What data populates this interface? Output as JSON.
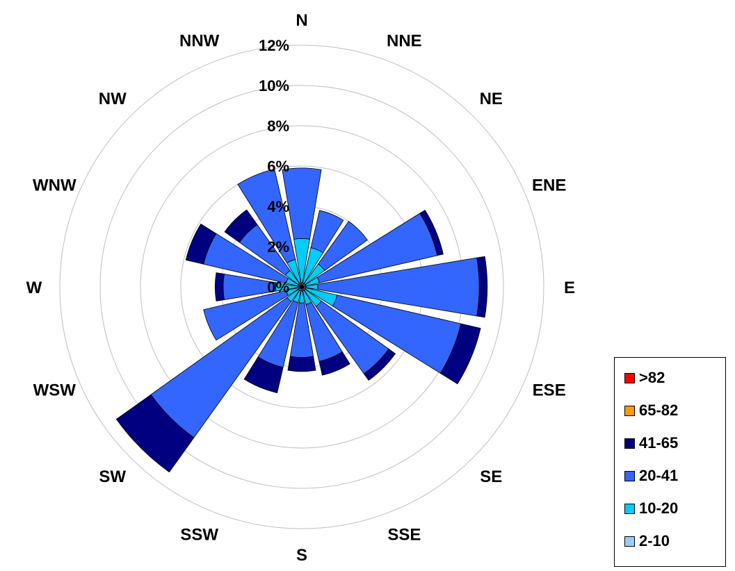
{
  "chart_data": {
    "type": "wind-rose",
    "title": "",
    "directions": [
      "N",
      "NNE",
      "NE",
      "ENE",
      "E",
      "ESE",
      "SE",
      "SSE",
      "S",
      "SSW",
      "SW",
      "WSW",
      "W",
      "WNW",
      "NW",
      "NNW"
    ],
    "radial_ticks": [
      "0%",
      "2%",
      "4%",
      "6%",
      "8%",
      "10%",
      "12%"
    ],
    "radial_max": 12,
    "grid": true,
    "legend_position": "bottom-right",
    "legend_order": [
      "s6",
      "s5",
      "s4",
      "s3",
      "s2",
      "s1"
    ],
    "series": [
      {
        "id": "s1",
        "name": "2-10",
        "color": "#99CCFF",
        "values": [
          0.2,
          0.2,
          0.2,
          0.2,
          0.2,
          0.2,
          0.2,
          0.2,
          0.2,
          0.2,
          0.2,
          0.2,
          0.2,
          0.2,
          0.2,
          0.2
        ]
      },
      {
        "id": "s2",
        "name": "10-20",
        "color": "#00CCFF",
        "values": [
          2.2,
          1.8,
          1.2,
          0.7,
          0.6,
          1.6,
          1.0,
          0.7,
          0.6,
          0.6,
          0.7,
          0.6,
          1.1,
          0.6,
          0.8,
          1.2
        ]
      },
      {
        "id": "s3",
        "name": "20-41",
        "color": "#3366FF",
        "values": [
          3.5,
          1.9,
          2.6,
          6.0,
          8.0,
          6.3,
          4.1,
          2.9,
          2.7,
          3.3,
          8.3,
          4.2,
          2.6,
          4.2,
          2.8,
          4.6
        ]
      },
      {
        "id": "s4",
        "name": "41-65",
        "color": "#000080",
        "values": [
          0.0,
          0.0,
          0.0,
          0.3,
          0.4,
          1.0,
          0.4,
          0.7,
          0.7,
          1.3,
          2.1,
          0.0,
          0.4,
          0.9,
          0.9,
          0.0
        ]
      },
      {
        "id": "s5",
        "name": "65-82",
        "color": "#FF9900",
        "values": [
          0,
          0,
          0,
          0,
          0,
          0,
          0,
          0,
          0,
          0,
          0,
          0,
          0,
          0,
          0,
          0
        ]
      },
      {
        "id": "s6",
        "name": ">82",
        "color": "#FF0000",
        "values": [
          0,
          0,
          0,
          0,
          0,
          0,
          0,
          0,
          0,
          0,
          0,
          0,
          0,
          0,
          0,
          0
        ]
      }
    ]
  }
}
